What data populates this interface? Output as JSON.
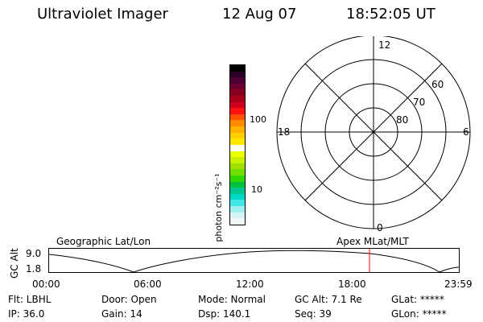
{
  "header": {
    "instrument": "Ultraviolet Imager",
    "date": "12 Aug 07",
    "time": "18:52:05 UT"
  },
  "colorbar": {
    "unit_label": "photon cm⁻²s⁻¹",
    "tick_100": "100",
    "tick_10": "10",
    "colors": [
      "#000000",
      "#2a002a",
      "#4b0033",
      "#6a0030",
      "#880020",
      "#a8001a",
      "#d00020",
      "#ff1010",
      "#ff5000",
      "#ff8c00",
      "#ffb000",
      "#ffd000",
      "#ffe800",
      "#fffff0",
      "#e8ff00",
      "#c8f000",
      "#a0e000",
      "#70e000",
      "#30d800",
      "#00c040",
      "#00c890",
      "#00d8c8",
      "#40e8e8",
      "#a0f0f0",
      "#d8f4f4",
      "#f0f8f8"
    ]
  },
  "polar": {
    "mlt_12": "12",
    "mlt_18": "18",
    "mlt_6": "6",
    "mlt_0": "0",
    "lat_60": "60",
    "lat_70": "70",
    "lat_80": "80"
  },
  "orbit": {
    "y_axis_label": "GC Alt",
    "y_max": "9.0",
    "y_min": "1.8",
    "left_title": "Geographic Lat/Lon",
    "right_title": "Apex MLat/MLT",
    "x_ticks": [
      "00:00",
      "06:00",
      "12:00",
      "18:00",
      "23:59"
    ],
    "marker_color": "#ff0000"
  },
  "info": {
    "filter": "Flt: LBHL",
    "door": "Door: Open",
    "mode": "Mode: Normal",
    "gc_alt": "GC Alt: 7.1 Re",
    "glat": "GLat: *****",
    "ip": "IP: 36.0",
    "gain": "Gain: 14",
    "dsp": "Dsp: 140.1",
    "seq": "Seq: 39",
    "glon": "GLon: *****"
  }
}
